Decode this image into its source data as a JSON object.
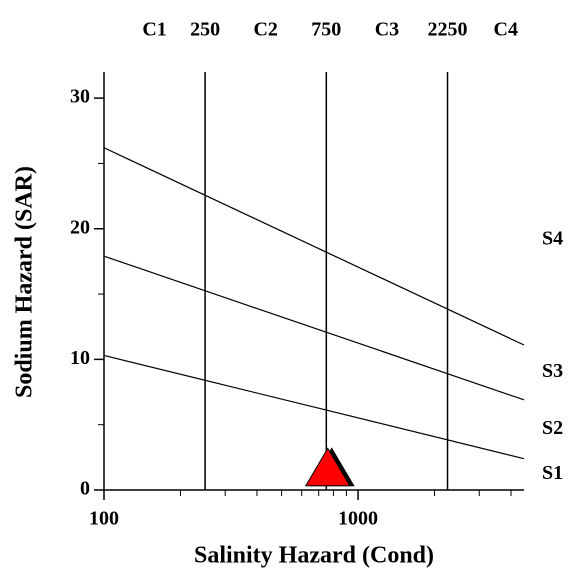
{
  "chart_data": {
    "type": "scatter",
    "x_label": "Salinity Hazard (Cond)",
    "y_label": "Sodium Hazard (SAR)",
    "xscale": "log",
    "xlim": [
      100,
      4500
    ],
    "ylim": [
      0,
      32
    ],
    "xticks": [
      100,
      1000
    ],
    "yticks": [
      0,
      10,
      20,
      30
    ],
    "x_minor_ticks": [
      200,
      300,
      400,
      500,
      600,
      700,
      800,
      900,
      2000,
      3000,
      4000
    ],
    "y_minor_ticks": [
      5,
      15,
      25
    ],
    "salinity_boundaries": [
      250,
      750,
      2250
    ],
    "salinity_classes": [
      "C1",
      "C2",
      "C3",
      "C4"
    ],
    "sodium_lines": [
      {
        "x": [
          100,
          4500
        ],
        "y": [
          10.3,
          2.4
        ]
      },
      {
        "x": [
          100,
          4500
        ],
        "y": [
          17.9,
          6.9
        ]
      },
      {
        "x": [
          100,
          4500
        ],
        "y": [
          26.2,
          11.1
        ]
      }
    ],
    "sodium_classes": [
      "S1",
      "S2",
      "S3",
      "S4"
    ],
    "points": {
      "x": [
        760
      ],
      "y": [
        1.5
      ],
      "color": "#ff0000"
    }
  }
}
